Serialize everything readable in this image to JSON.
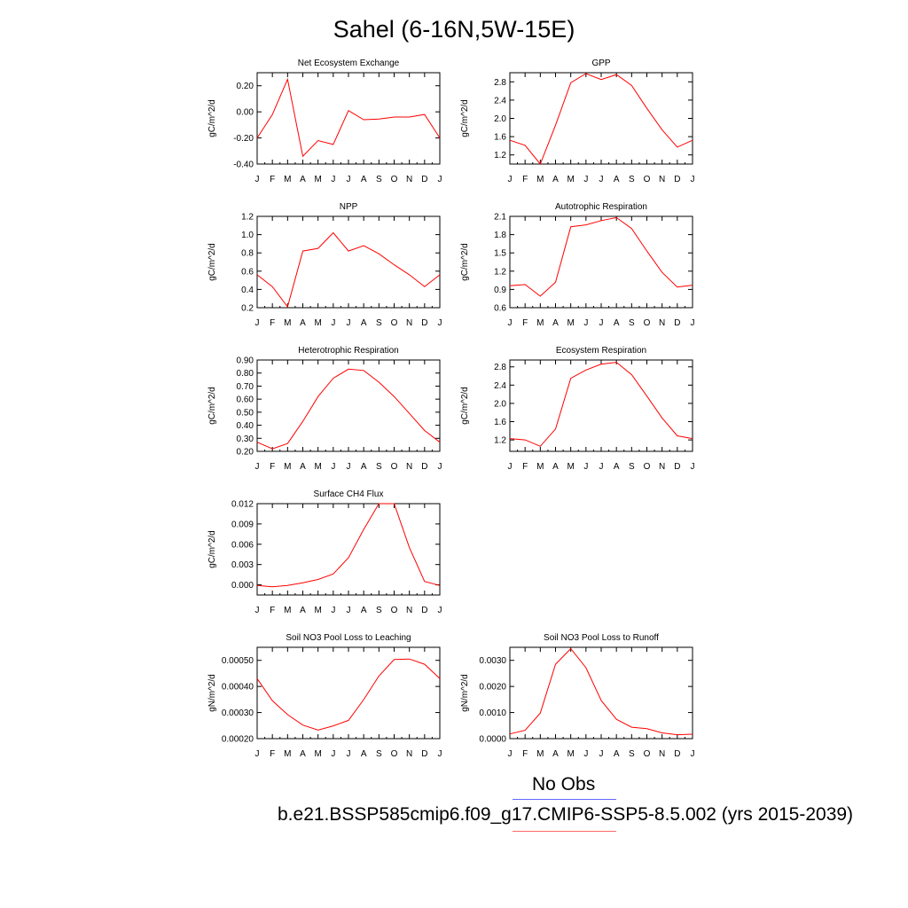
{
  "title": "Sahel (6-16N,5W-15E)",
  "month_labels": [
    "J",
    "F",
    "M",
    "A",
    "M",
    "J",
    "J",
    "A",
    "S",
    "O",
    "N",
    "D",
    "J"
  ],
  "legend": {
    "obs_label": "No Obs",
    "obs_color": "#6666ff",
    "model_label": "b.e21.BSSP585cmip6.f09_g17.CMIP6-SSP5-8.5.002 (yrs 2015-2039)",
    "model_color": "#ff6666"
  },
  "series_color": "#ff0000",
  "chart_data": [
    {
      "type": "line",
      "title": "Net Ecosystem Exchange",
      "ylabel": "gC/m^2/d",
      "ylim": [
        -0.4,
        0.3
      ],
      "yticks": [
        -0.4,
        -0.2,
        0.0,
        0.2
      ],
      "ytick_labels": [
        "-0.40",
        "-0.20",
        "0.00",
        "0.20"
      ],
      "values": [
        -0.2,
        -0.02,
        0.25,
        -0.34,
        -0.22,
        -0.25,
        0.01,
        -0.06,
        -0.055,
        -0.04,
        -0.04,
        -0.02,
        -0.2
      ]
    },
    {
      "type": "line",
      "title": "GPP",
      "ylabel": "gC/m^2/d",
      "ylim": [
        1.0,
        3.0
      ],
      "yticks": [
        1.2,
        1.6,
        2.0,
        2.4,
        2.8
      ],
      "ytick_labels": [
        "1.2",
        "1.6",
        "2.0",
        "2.4",
        "2.8"
      ],
      "values": [
        1.52,
        1.41,
        1.0,
        1.85,
        2.78,
        2.98,
        2.85,
        2.96,
        2.72,
        2.22,
        1.75,
        1.37,
        1.52
      ]
    },
    {
      "type": "line",
      "title": "NPP",
      "ylabel": "gC/m^2/d",
      "ylim": [
        0.2,
        1.2
      ],
      "yticks": [
        0.2,
        0.4,
        0.6,
        0.8,
        1.0,
        1.2
      ],
      "ytick_labels": [
        "0.2",
        "0.4",
        "0.6",
        "0.8",
        "1.0",
        "1.2"
      ],
      "values": [
        0.56,
        0.43,
        0.21,
        0.82,
        0.85,
        1.02,
        0.82,
        0.88,
        0.79,
        0.67,
        0.56,
        0.43,
        0.56
      ]
    },
    {
      "type": "line",
      "title": "Autotrophic Respiration",
      "ylabel": "gC/m^2/d",
      "ylim": [
        0.6,
        2.1
      ],
      "yticks": [
        0.6,
        0.9,
        1.2,
        1.5,
        1.8,
        2.1
      ],
      "ytick_labels": [
        "0.6",
        "0.9",
        "1.2",
        "1.5",
        "1.8",
        "2.1"
      ],
      "values": [
        0.96,
        0.98,
        0.79,
        1.02,
        1.93,
        1.96,
        2.03,
        2.08,
        1.9,
        1.53,
        1.18,
        0.94,
        0.97
      ]
    },
    {
      "type": "line",
      "title": "Heterotrophic Respiration",
      "ylabel": "gC/m^2/d",
      "ylim": [
        0.2,
        0.9
      ],
      "yticks": [
        0.2,
        0.3,
        0.4,
        0.5,
        0.6,
        0.7,
        0.8,
        0.9
      ],
      "ytick_labels": [
        "0.20",
        "0.30",
        "0.40",
        "0.50",
        "0.60",
        "0.70",
        "0.80",
        "0.90"
      ],
      "values": [
        0.27,
        0.22,
        0.26,
        0.43,
        0.62,
        0.76,
        0.83,
        0.82,
        0.73,
        0.62,
        0.49,
        0.36,
        0.27
      ]
    },
    {
      "type": "line",
      "title": "Ecosystem Respiration",
      "ylabel": "gC/m^2/d",
      "ylim": [
        0.95,
        2.95
      ],
      "yticks": [
        1.2,
        1.6,
        2.0,
        2.4,
        2.8
      ],
      "ytick_labels": [
        "1.2",
        "1.6",
        "2.0",
        "2.4",
        "2.8"
      ],
      "values": [
        1.23,
        1.2,
        1.06,
        1.44,
        2.55,
        2.73,
        2.86,
        2.9,
        2.63,
        2.16,
        1.68,
        1.29,
        1.23
      ]
    },
    {
      "type": "line",
      "title": "Surface CH4 Flux",
      "ylabel": "gC/m^2/d",
      "ylim": [
        -0.0015,
        0.012
      ],
      "yticks": [
        0.0,
        0.003,
        0.006,
        0.009,
        0.012
      ],
      "ytick_labels": [
        "0.000",
        "0.003",
        "0.006",
        "0.009",
        "0.012"
      ],
      "values": [
        -0.0001,
        -0.0003,
        -0.0001,
        0.0003,
        0.0008,
        0.0016,
        0.004,
        0.0082,
        0.012,
        0.012,
        0.0055,
        0.0005,
        -0.0001
      ]
    },
    null,
    {
      "type": "line",
      "title": "Soil NO3 Pool Loss to Leaching",
      "ylabel": "gN/m^2/d",
      "ylim": [
        0.0002,
        0.00055
      ],
      "yticks": [
        0.0002,
        0.0003,
        0.0004,
        0.0005
      ],
      "ytick_labels": [
        "0.00020",
        "0.00030",
        "0.00040",
        "0.00050"
      ],
      "values": [
        0.00043,
        0.000345,
        0.000292,
        0.000252,
        0.000233,
        0.000249,
        0.00027,
        0.00035,
        0.00044,
        0.000503,
        0.000505,
        0.000485,
        0.00043
      ]
    },
    {
      "type": "line",
      "title": "Soil NO3 Pool Loss to Runoff",
      "ylabel": "gN/m^2/d",
      "ylim": [
        0.0,
        0.0035
      ],
      "yticks": [
        0.0,
        0.001,
        0.002,
        0.003
      ],
      "ytick_labels": [
        "0.0000",
        "0.0010",
        "0.0020",
        "0.0030"
      ],
      "values": [
        0.00018,
        0.00032,
        0.00098,
        0.00285,
        0.00345,
        0.00272,
        0.00146,
        0.00074,
        0.00044,
        0.00038,
        0.00022,
        0.00015,
        0.00017
      ]
    }
  ]
}
